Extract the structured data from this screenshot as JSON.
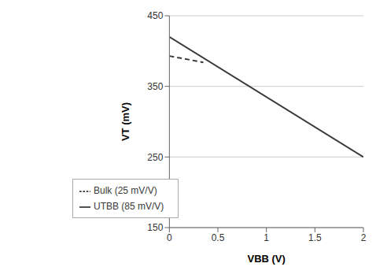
{
  "chart_data": {
    "type": "line",
    "xlabel": "VBB (V)",
    "ylabel": "VT (mV)",
    "xlim": [
      0,
      2
    ],
    "ylim": [
      150,
      450
    ],
    "xticks": [
      0,
      0.5,
      1,
      1.5,
      2
    ],
    "yticks": [
      150,
      250,
      350,
      450
    ],
    "grid": true,
    "legend": "lower left",
    "series": [
      {
        "name": "UTBB (85 mV/V)",
        "color": "#3a3a3a",
        "line_style": "solid",
        "x": [
          0,
          2
        ],
        "values": [
          420,
          250
        ]
      },
      {
        "name": "Bulk (25 mV/V)",
        "color": "#3a3a3a",
        "line_style": "dashed",
        "x": [
          0,
          0.35
        ],
        "values": [
          393,
          384
        ]
      }
    ]
  }
}
